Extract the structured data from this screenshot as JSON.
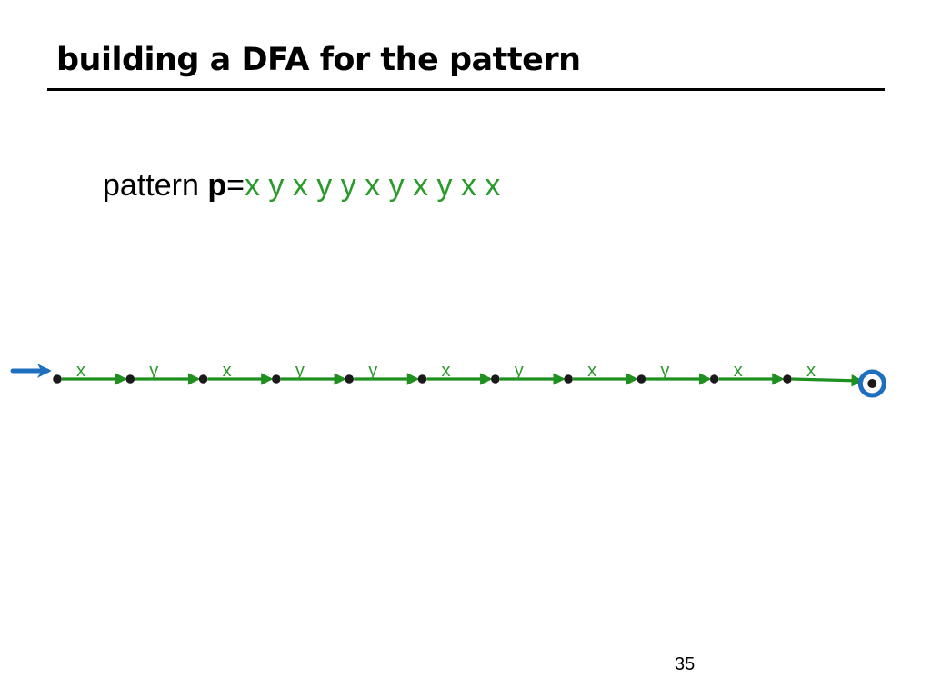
{
  "slide": {
    "title": "building a DFA for the pattern",
    "page_number": "35"
  },
  "pattern": {
    "prefix": "pattern ",
    "variable": "p",
    "equals": "=",
    "sequence": "x y x y y x y x y x x"
  },
  "dfa": {
    "symbols": [
      "x",
      "y",
      "x",
      "y",
      "y",
      "x",
      "y",
      "x",
      "y",
      "x",
      "x"
    ],
    "state_count": 12,
    "start_state": 0,
    "accept_state": 11
  },
  "colors": {
    "transition": "#1f8f1f",
    "label": "#2a9a2a",
    "start_arrow": "#1f6fbf",
    "accept_ring": "#1f6fbf",
    "state": "#1a1a1a"
  }
}
